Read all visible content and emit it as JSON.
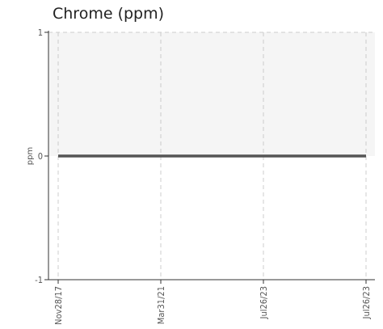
{
  "chart_data": {
    "type": "line",
    "title": "Chrome (ppm)",
    "xlabel": "",
    "ylabel": "ppm",
    "ylim": [
      -1,
      1
    ],
    "yticks": [
      1,
      0,
      -1
    ],
    "x_tick_labels": [
      "Nov28/17",
      "Mar31/21",
      "Jul26/23",
      "Jul26/23"
    ],
    "grid": true,
    "series": [
      {
        "values": [
          0,
          0,
          0,
          0
        ]
      }
    ],
    "colors": {
      "line": "#555555",
      "grid": "#cccccc",
      "plot_bg_upper": "#f5f5f5"
    }
  }
}
